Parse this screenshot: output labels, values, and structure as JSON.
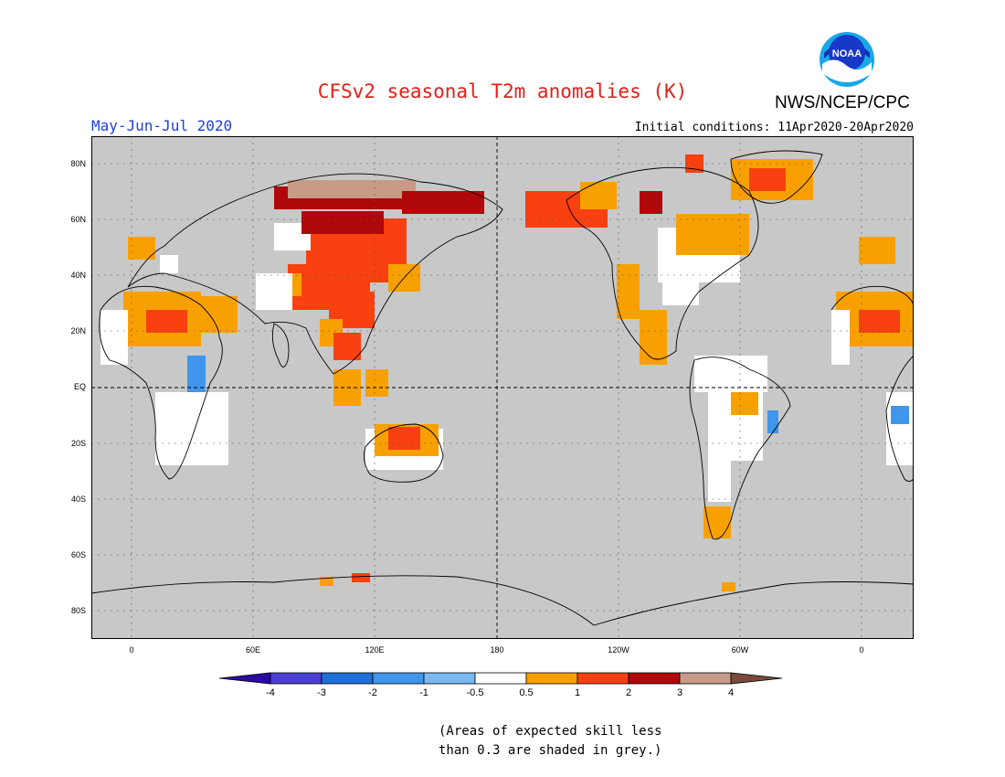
{
  "header": {
    "title": "CFSv2 seasonal T2m anomalies (K)",
    "period": "May-Jun-Jul 2020",
    "initial_conditions": "Initial conditions: 11Apr2020-20Apr2020",
    "agency": "NWS/NCEP/CPC",
    "logo_text": "NOAA"
  },
  "map": {
    "lat_labels": [
      "80N",
      "60N",
      "40N",
      "20N",
      "EQ",
      "20S",
      "40S",
      "60S",
      "80S"
    ],
    "lon_labels": [
      "0",
      "60E",
      "120E",
      "180",
      "120W",
      "60W",
      "0"
    ]
  },
  "colorbar": {
    "labels": [
      "-4",
      "-3",
      "-2",
      "-1",
      "-0.5",
      "0.5",
      "1",
      "2",
      "3",
      "4"
    ],
    "colors": [
      "#2a0aa0",
      "#4a3fd0",
      "#1f6fd8",
      "#3f96ea",
      "#7ab8f2",
      "#ffffff",
      "#f8a000",
      "#f84010",
      "#b00808",
      "#c89a88",
      "#7a4a3a"
    ]
  },
  "note": {
    "line1": "(Areas of expected skill less",
    "line2": "than 0.3 are shaded in grey.)"
  }
}
